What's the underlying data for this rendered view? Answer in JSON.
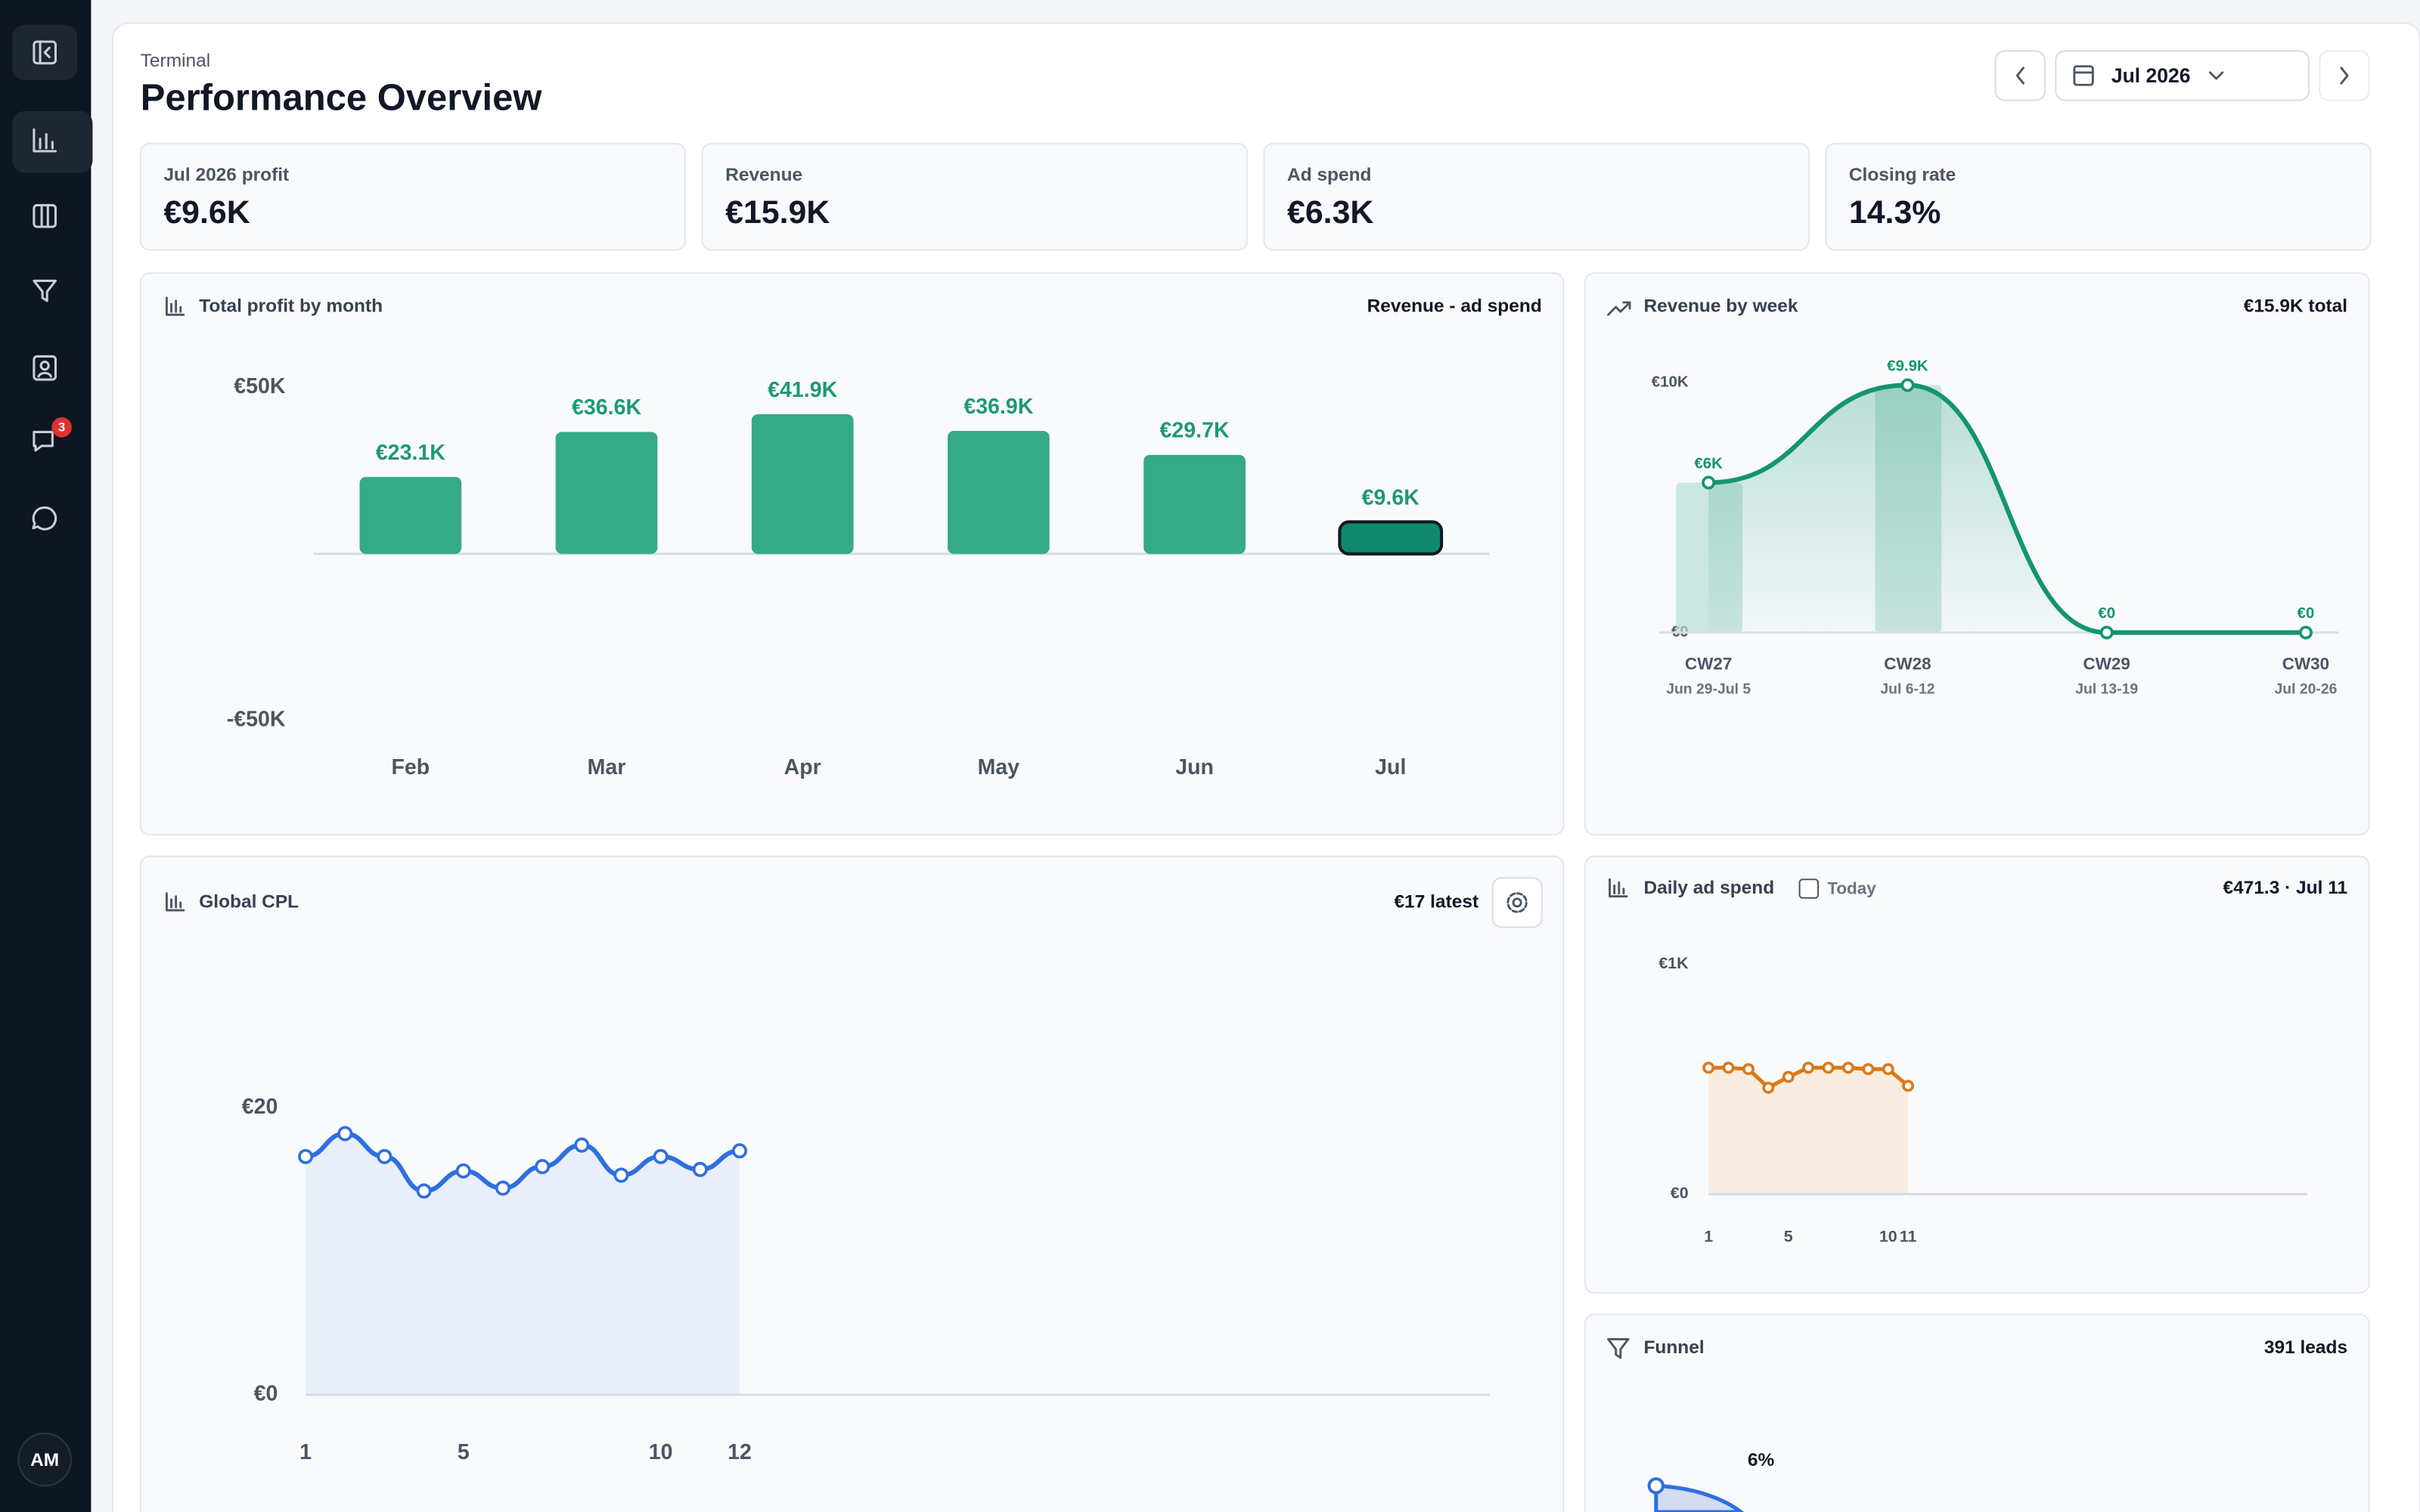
{
  "sidebar": {
    "badge": "3",
    "avatar": "AM"
  },
  "header": {
    "breadcrumb": "Terminal",
    "title": "Performance Overview",
    "period": "Jul 2026"
  },
  "kpis": [
    {
      "label": "Jul 2026 profit",
      "value": "€9.6K"
    },
    {
      "label": "Revenue",
      "value": "€15.9K"
    },
    {
      "label": "Ad spend",
      "value": "€6.3K"
    },
    {
      "label": "Closing rate",
      "value": "14.3%"
    }
  ],
  "profit_by_month": {
    "type": "bar",
    "title": "Total profit by month",
    "note": "Revenue - ad spend",
    "categories": [
      "Feb",
      "Mar",
      "Apr",
      "May",
      "Jun",
      "Jul"
    ],
    "values": [
      23100,
      36600,
      41900,
      36900,
      29700,
      9600
    ],
    "value_labels": [
      "€23.1K",
      "€36.6K",
      "€41.9K",
      "€36.9K",
      "€29.7K",
      "€9.6K"
    ],
    "colors": [
      "#34aa86",
      "#34aa86",
      "#34aa86",
      "#34aa86",
      "#34aa86",
      "#0e8a6b"
    ],
    "ylim": [
      -50000,
      50000
    ],
    "yticks": [
      {
        "value": 50000,
        "label": "€50K"
      },
      {
        "value": -50000,
        "label": "-€50K"
      }
    ]
  },
  "revenue_by_week": {
    "type": "line",
    "title": "Revenue by week",
    "note": "€15.9K total",
    "categories": [
      "CW27",
      "CW28",
      "CW29",
      "CW30"
    ],
    "ranges": [
      "Jun 29-Jul 5",
      "Jul 6-12",
      "Jul 13-19",
      "Jul 20-26"
    ],
    "values": [
      6000,
      9900,
      0,
      0
    ],
    "value_labels": [
      "€6K",
      "€9.9K",
      "€0",
      "€0"
    ],
    "color": "#13956f",
    "ylim": [
      0,
      10000
    ],
    "yticks": [
      {
        "value": 0,
        "label": "€0"
      },
      {
        "value": 10000,
        "label": "€10K"
      }
    ]
  },
  "global_cpl": {
    "type": "line",
    "title": "Global CPL",
    "note": "€17 latest",
    "x": [
      1,
      2,
      3,
      4,
      5,
      6,
      7,
      8,
      9,
      10,
      11,
      12
    ],
    "values": [
      16.6,
      18.2,
      16.6,
      14.2,
      15.6,
      14.4,
      15.9,
      17.4,
      15.3,
      16.6,
      15.7,
      17.0
    ],
    "color": "#2f6fde",
    "area_color": "#e8effb",
    "xlim": [
      1,
      31
    ],
    "xticks": [
      1,
      5,
      10,
      12
    ],
    "ylim": [
      0,
      20
    ],
    "yticks": [
      {
        "value": 0,
        "label": "€0"
      },
      {
        "value": 20,
        "label": "€20"
      }
    ]
  },
  "daily_ad_spend": {
    "type": "line",
    "title": "Daily ad spend",
    "toggle": "Today",
    "note": "€471.3 · Jul 11",
    "x": [
      1,
      2,
      3,
      4,
      5,
      6,
      7,
      8,
      9,
      10,
      11
    ],
    "values": [
      550,
      550,
      544,
      463,
      510,
      550,
      550,
      550,
      544,
      544,
      471.3
    ],
    "color": "#d97a1c",
    "area_color": "#f8ece0",
    "xlim": [
      1,
      31
    ],
    "xticks": [
      1,
      5,
      10,
      11
    ],
    "ylim": [
      0,
      1000
    ],
    "yticks": [
      {
        "value": 0,
        "label": "€0"
      },
      {
        "value": 1000,
        "label": "€1K"
      }
    ]
  },
  "funnel": {
    "title": "Funnel",
    "note": "391 leads",
    "stage_label": "6%"
  }
}
